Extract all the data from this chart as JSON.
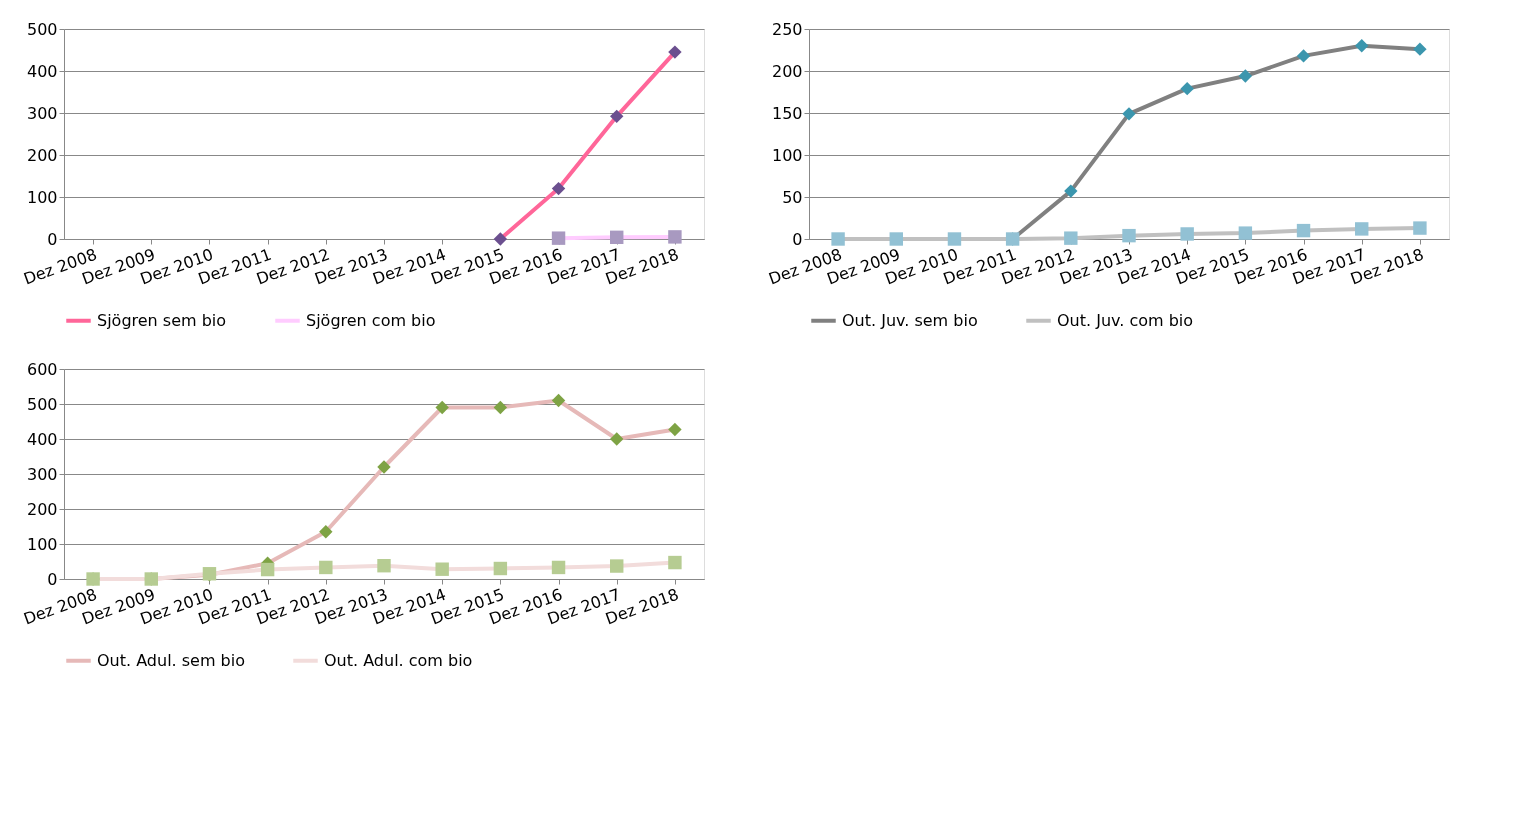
{
  "chart_data": [
    {
      "type": "line",
      "categories": [
        "Dez 2008",
        "Dez 2009",
        "Dez 2010",
        "Dez 2011",
        "Dez 2012",
        "Dez 2013",
        "Dez 2014",
        "Dez 2015",
        "Dez 2016",
        "Dez 2017",
        "Dez 2018"
      ],
      "ylim": [
        0,
        500
      ],
      "yticks": [
        0,
        100,
        200,
        300,
        400,
        500
      ],
      "grid": "y",
      "legend": "bottom",
      "series": [
        {
          "name": "Sjögren sem bio",
          "color": "#ff6699",
          "marker": "diamond",
          "colors": [
            "#6b4f8f",
            "#6b4f8f",
            "#6b4f8f",
            "#6b4f8f",
            "#6b4f8f",
            "#6b4f8f",
            "#6b4f8f",
            "#6b4f8f",
            "#6b4f8f",
            "#6b4f8f",
            "#6b4f8f"
          ],
          "values": [
            null,
            null,
            null,
            null,
            null,
            null,
            null,
            0,
            120,
            292,
            445
          ]
        },
        {
          "name": "Sjögren com bio",
          "color": "#ffccff",
          "marker": "square",
          "colors": [
            "#a899c0",
            "#a899c0",
            "#a899c0",
            "#a899c0",
            "#a899c0",
            "#a899c0",
            "#a899c0",
            "#a899c0",
            "#a899c0",
            "#a899c0",
            "#a899c0"
          ],
          "values": [
            null,
            null,
            null,
            null,
            null,
            null,
            null,
            null,
            2,
            4,
            5
          ]
        }
      ]
    },
    {
      "type": "line",
      "categories": [
        "Dez 2008",
        "Dez 2009",
        "Dez 2010",
        "Dez 2011",
        "Dez 2012",
        "Dez 2013",
        "Dez 2014",
        "Dez 2015",
        "Dez 2016",
        "Dez 2017",
        "Dez 2018"
      ],
      "ylim": [
        0,
        250
      ],
      "yticks": [
        0,
        50,
        100,
        150,
        200,
        250
      ],
      "grid": "y",
      "legend": "bottom",
      "series": [
        {
          "name": "Out. Juv. sem bio",
          "color": "#808080",
          "marker": "diamond",
          "colors": [
            "#3b96ae",
            "#3b96ae",
            "#3b96ae",
            "#3b96ae",
            "#3b96ae",
            "#3b96ae",
            "#3b96ae",
            "#3b96ae",
            "#3b96ae",
            "#3b96ae",
            "#3b96ae"
          ],
          "values": [
            null,
            null,
            null,
            0,
            57,
            149,
            179,
            194,
            218,
            230,
            226
          ]
        },
        {
          "name": "Out. Juv. com bio",
          "color": "#c0c0c0",
          "marker": "square",
          "colors": [
            "#92c1d4",
            "#92c1d4",
            "#92c1d4",
            "#92c1d4",
            "#92c1d4",
            "#92c1d4",
            "#92c1d4",
            "#92c1d4",
            "#92c1d4",
            "#92c1d4",
            "#92c1d4"
          ],
          "values": [
            0,
            0,
            0,
            0,
            1,
            4,
            6,
            7,
            10,
            12,
            13
          ]
        }
      ]
    },
    {
      "type": "line",
      "categories": [
        "Dez 2008",
        "Dez 2009",
        "Dez 2010",
        "Dez 2011",
        "Dez 2012",
        "Dez 2013",
        "Dez 2014",
        "Dez 2015",
        "Dez 2016",
        "Dez 2017",
        "Dez 2018"
      ],
      "ylim": [
        0,
        600
      ],
      "yticks": [
        0,
        100,
        200,
        300,
        400,
        500,
        600
      ],
      "grid": "y",
      "legend": "bottom",
      "series": [
        {
          "name": "Out. Adul. sem bio",
          "color": "#e6b9b8",
          "marker": "diamond",
          "colors": [
            "#7ea344",
            "#7ea344",
            "#7ea344",
            "#7ea344",
            "#7ea344",
            "#7ea344",
            "#7ea344",
            "#7ea344",
            "#7ea344",
            "#7ea344",
            "#7ea344"
          ],
          "values": [
            0,
            0,
            12,
            45,
            135,
            320,
            490,
            490,
            510,
            400,
            427
          ]
        },
        {
          "name": "Out. Adul. com bio",
          "color": "#f2dcdb",
          "marker": "square",
          "colors": [
            "#b6cc92",
            "#b6cc92",
            "#b6cc92",
            "#b6cc92",
            "#b6cc92",
            "#b6cc92",
            "#b6cc92",
            "#b6cc92",
            "#b6cc92",
            "#b6cc92",
            "#b6cc92"
          ],
          "values": [
            0,
            0,
            15,
            27,
            33,
            38,
            28,
            30,
            33,
            37,
            47
          ]
        }
      ]
    }
  ]
}
